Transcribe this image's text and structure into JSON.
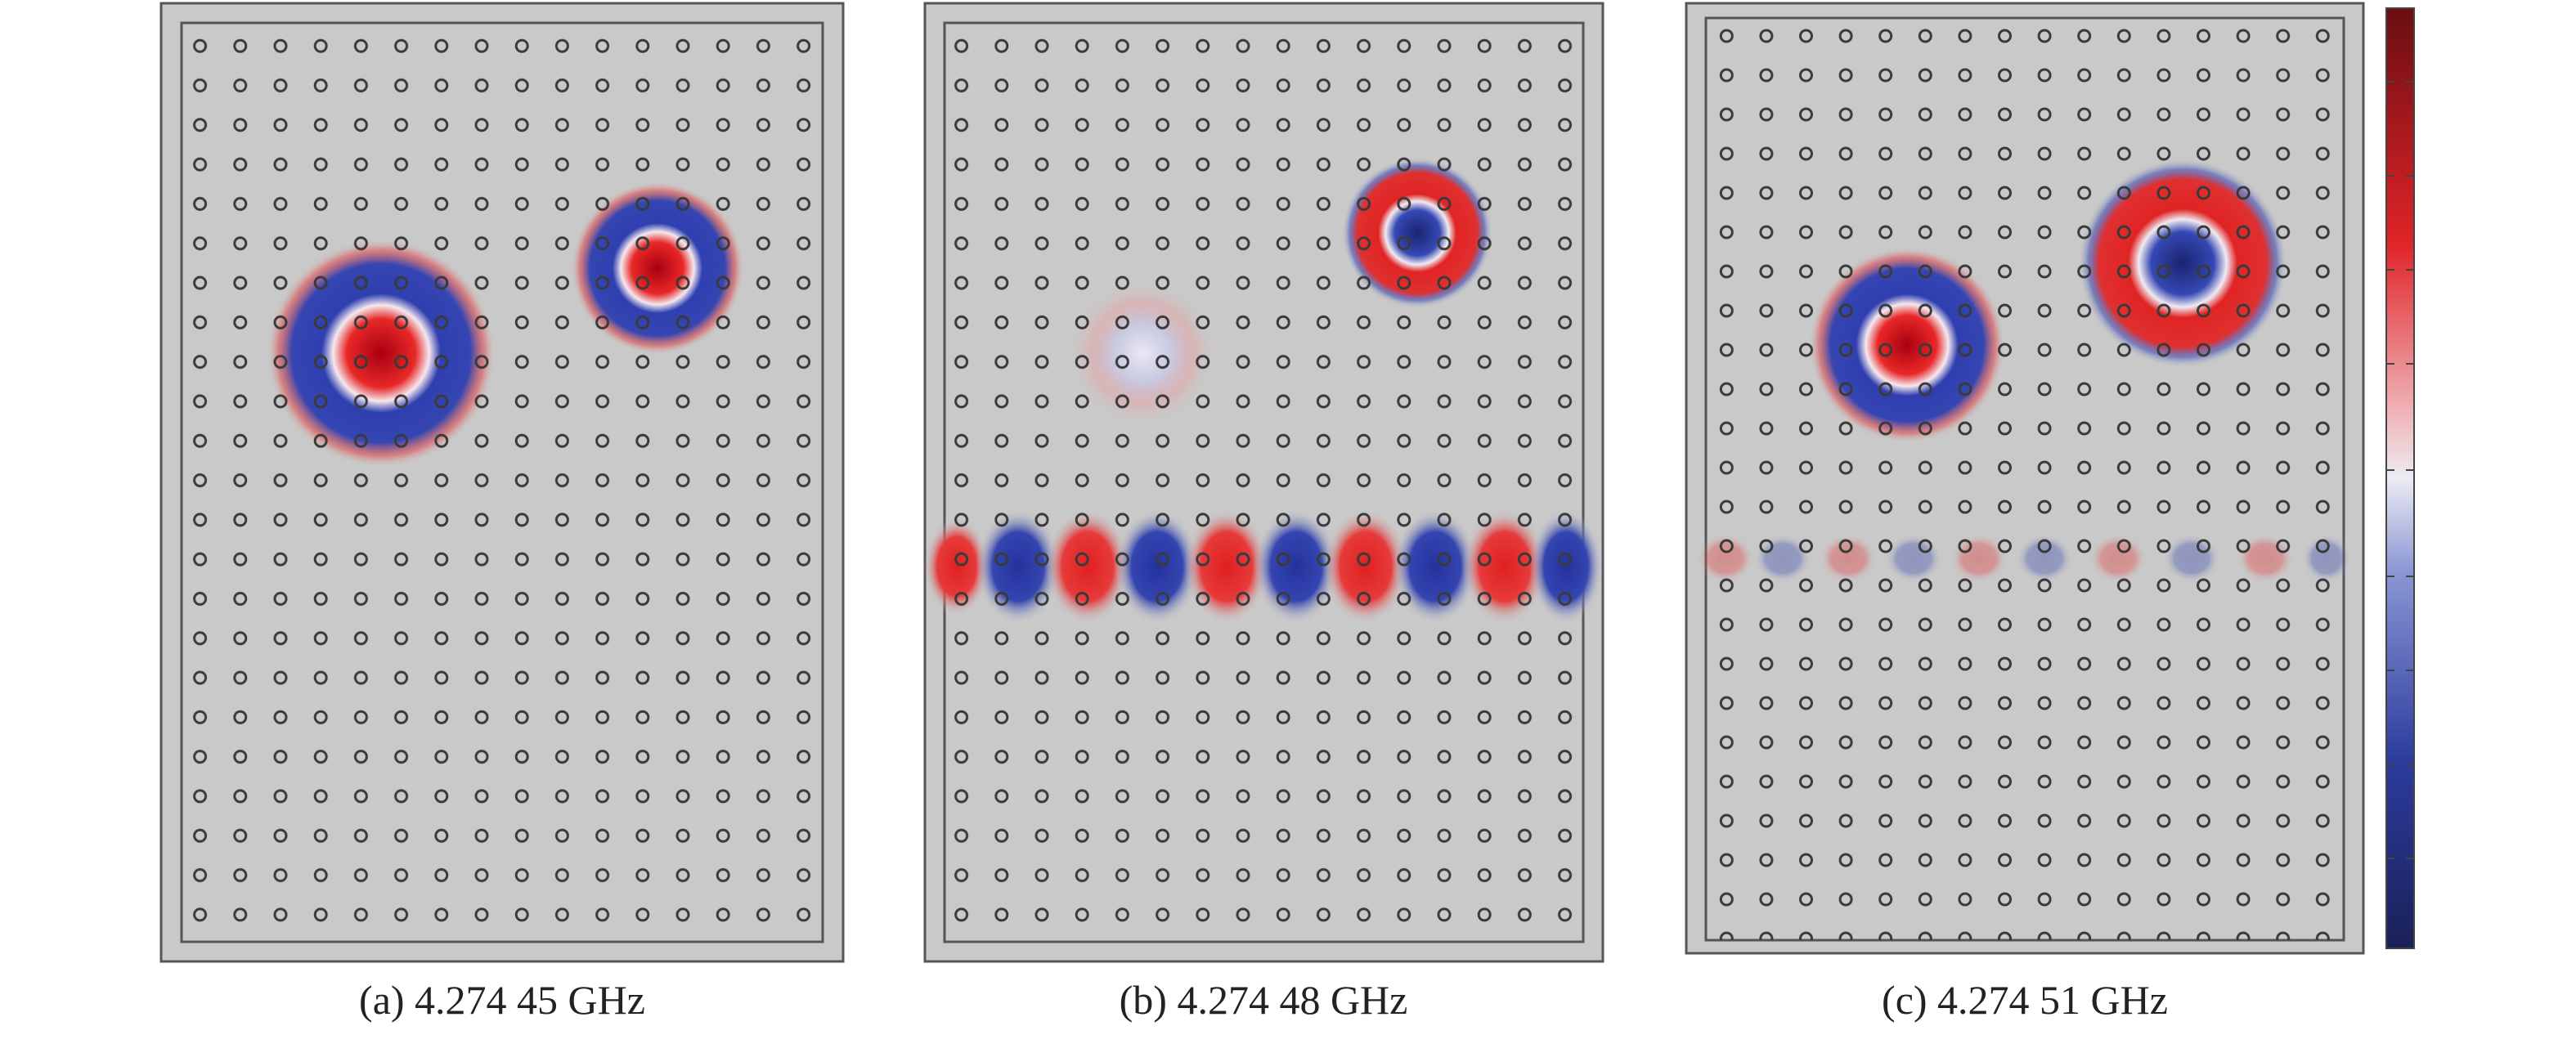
{
  "panels": [
    {
      "caption": "(a) 4.274 45 GHz"
    },
    {
      "caption": "(b) 4.274 48 GHz"
    },
    {
      "caption": "(c) 4.274 51 GHz"
    }
  ]
}
